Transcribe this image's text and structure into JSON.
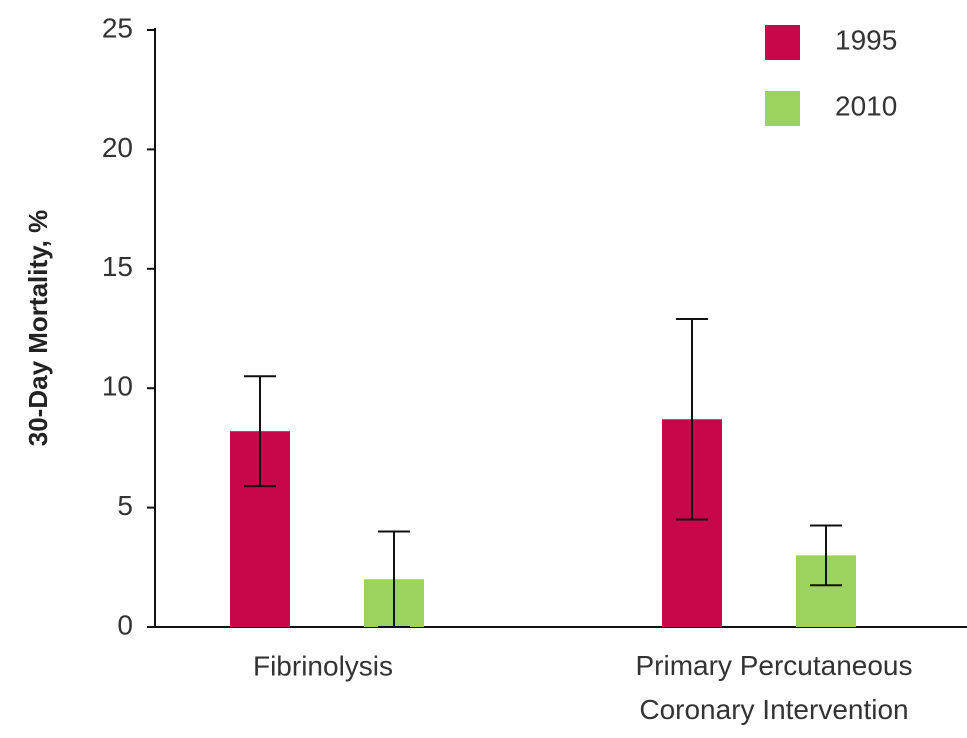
{
  "chart_data": {
    "type": "bar",
    "y_label": "30-Day Mortality, %",
    "categories": [
      "Fibrinolysis",
      "Primary Percutaneous\nCoronary Intervention"
    ],
    "series": [
      {
        "name": "1995",
        "color": "#c8074b",
        "values": [
          8.2,
          8.7
        ],
        "errors": [
          2.3,
          4.2
        ]
      },
      {
        "name": "2010",
        "color": "#9bd35c",
        "values": [
          2.0,
          3.0
        ],
        "errors": [
          2.0,
          1.25
        ]
      }
    ],
    "ylim": [
      0,
      25
    ],
    "yticks": [
      0,
      5,
      10,
      15,
      20,
      25
    ],
    "grid": false,
    "legend": "top-right"
  }
}
